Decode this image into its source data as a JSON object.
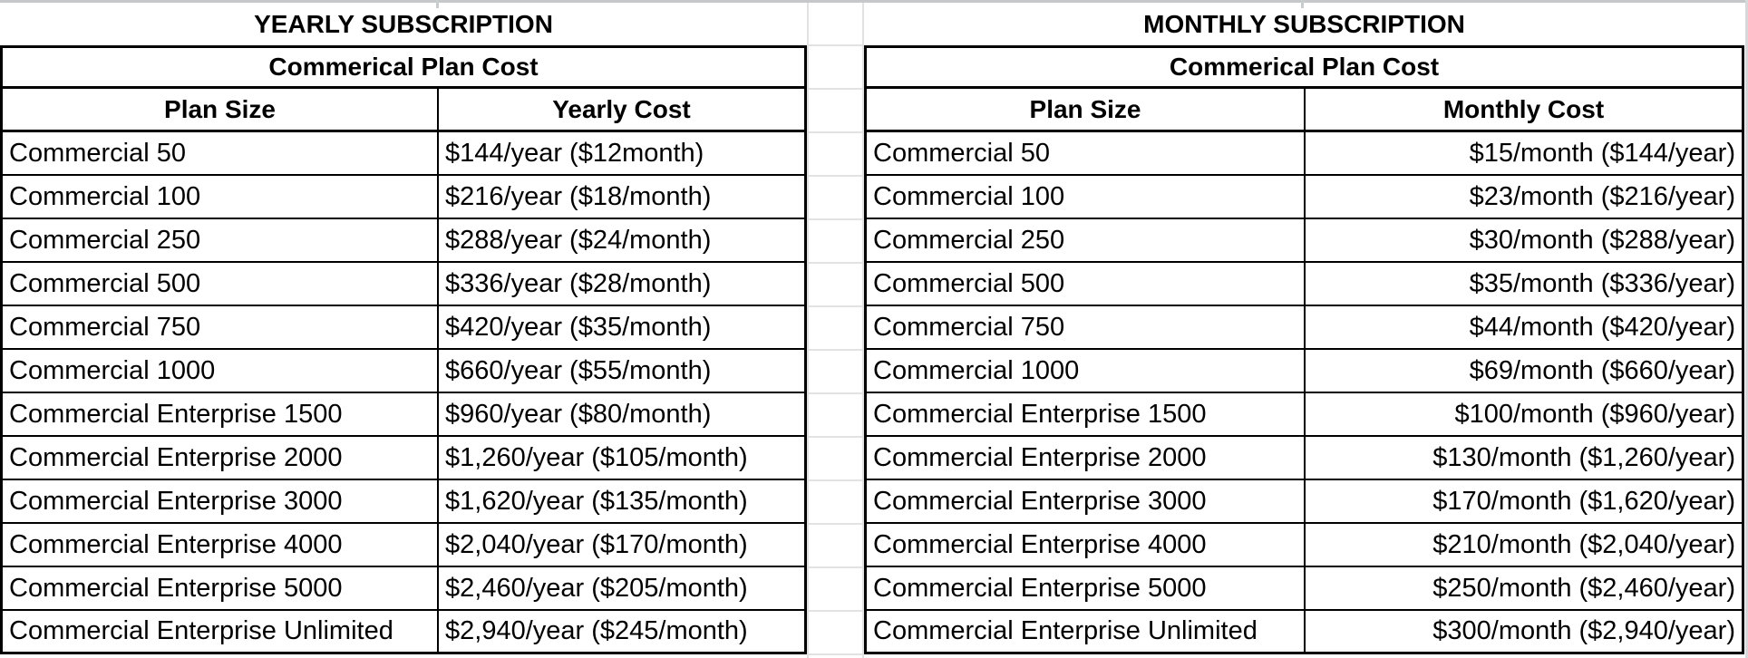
{
  "sheet": {
    "yearly": {
      "title": "YEARLY SUBSCRIPTION",
      "subtitle": "Commerical Plan Cost",
      "columns": [
        "Plan Size",
        "Yearly Cost"
      ],
      "rows": [
        {
          "plan": "Commercial 50",
          "cost": "$144/year ($12month)"
        },
        {
          "plan": "Commercial 100",
          "cost": "$216/year ($18/month)"
        },
        {
          "plan": "Commercial 250",
          "cost": "$288/year ($24/month)"
        },
        {
          "plan": "Commercial 500",
          "cost": "$336/year ($28/month)"
        },
        {
          "plan": "Commercial 750",
          "cost": "$420/year ($35/month)"
        },
        {
          "plan": "Commercial 1000",
          "cost": "$660/year ($55/month)"
        },
        {
          "plan": "Commercial Enterprise 1500",
          "cost": "$960/year ($80/month)"
        },
        {
          "plan": "Commercial Enterprise 2000",
          "cost": "$1,260/year ($105/month)"
        },
        {
          "plan": "Commercial Enterprise 3000",
          "cost": "$1,620/year ($135/month)"
        },
        {
          "plan": "Commercial Enterprise 4000",
          "cost": "$2,040/year ($170/month)"
        },
        {
          "plan": "Commercial Enterprise 5000",
          "cost": "$2,460/year ($205/month)"
        },
        {
          "plan": "Commercial Enterprise Unlimited",
          "cost": "$2,940/year ($245/month)"
        }
      ]
    },
    "monthly": {
      "title": "MONTHLY SUBSCRIPTION",
      "subtitle": "Commerical Plan Cost",
      "columns": [
        "Plan Size",
        "Monthly Cost"
      ],
      "rows": [
        {
          "plan": "Commercial 50",
          "cost": "$15/month ($144/year)"
        },
        {
          "plan": "Commercial 100",
          "cost": "$23/month ($216/year)"
        },
        {
          "plan": "Commercial 250",
          "cost": "$30/month ($288/year)"
        },
        {
          "plan": "Commercial 500",
          "cost": "$35/month ($336/year)"
        },
        {
          "plan": "Commercial 750",
          "cost": "$44/month ($420/year)"
        },
        {
          "plan": "Commercial 1000",
          "cost": "$69/month ($660/year)"
        },
        {
          "plan": "Commercial Enterprise 1500",
          "cost": "$100/month ($960/year)"
        },
        {
          "plan": "Commercial Enterprise 2000",
          "cost": "$130/month ($1,260/year)"
        },
        {
          "plan": "Commercial Enterprise 3000",
          "cost": "$170/month ($1,620/year)"
        },
        {
          "plan": "Commercial Enterprise 4000",
          "cost": "$210/month ($2,040/year)"
        },
        {
          "plan": "Commercial Enterprise 5000",
          "cost": "$250/month ($2,460/year)"
        },
        {
          "plan": "Commercial Enterprise Unlimited",
          "cost": "$300/month ($2,940/year)"
        }
      ]
    }
  },
  "colors": {
    "table_border": "#000000",
    "text": "#000000",
    "background": "#ffffff",
    "sheet_gridline": "#e2e2e2",
    "top_gridline": "#c5c8c8",
    "right_edge_gridline": "#d6d9d9"
  }
}
